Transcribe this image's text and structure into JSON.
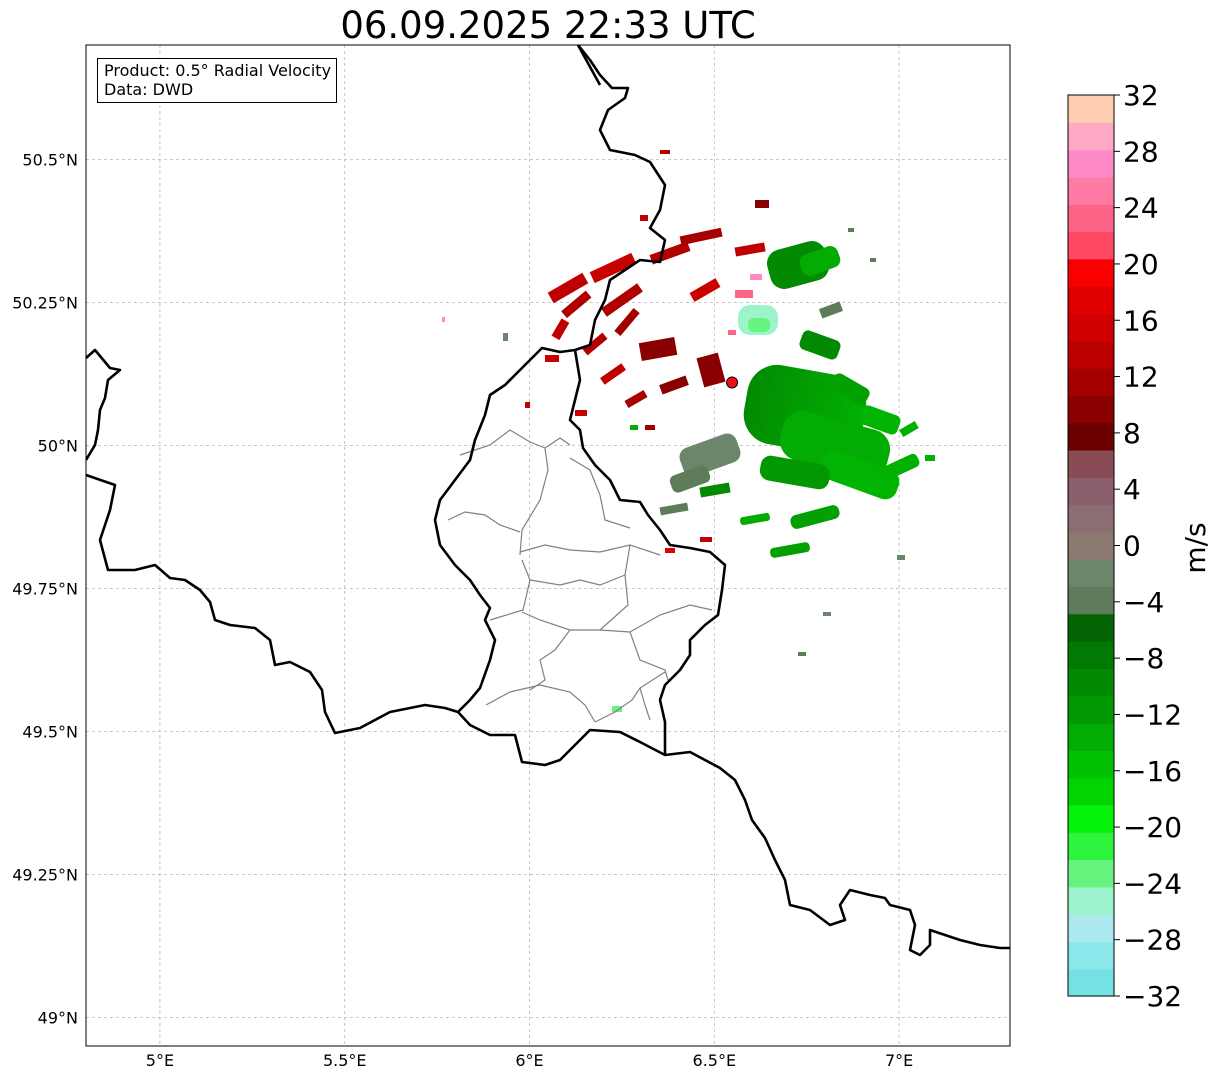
{
  "title": "06.09.2025 22:33 UTC",
  "info": {
    "product_line": "Product: 0.5° Radial Velocity",
    "data_line": "Data: DWD"
  },
  "map": {
    "lon_range": [
      4.8,
      7.3
    ],
    "lat_range": [
      48.95,
      50.7
    ],
    "lon_ticks": [
      {
        "value": 5.0,
        "label": "5°E"
      },
      {
        "value": 5.5,
        "label": "5.5°E"
      },
      {
        "value": 6.0,
        "label": "6°E"
      },
      {
        "value": 6.5,
        "label": "6.5°E"
      },
      {
        "value": 7.0,
        "label": "7°E"
      }
    ],
    "lat_ticks": [
      {
        "value": 49.0,
        "label": "49°N"
      },
      {
        "value": 49.25,
        "label": "49.25°N"
      },
      {
        "value": 49.5,
        "label": "49.5°N"
      },
      {
        "value": 49.75,
        "label": "49.75°N"
      },
      {
        "value": 50.0,
        "label": "50°N"
      },
      {
        "value": 50.25,
        "label": "50.25°N"
      },
      {
        "value": 50.5,
        "label": "50.5°N"
      }
    ],
    "gridlines": true,
    "radar_site": {
      "lon": 6.548,
      "lat": 50.11,
      "color": "#e8101a"
    }
  },
  "colorbar": {
    "unit": "m/s",
    "min": -32,
    "max": 32,
    "tick_labels": [
      {
        "value": 32,
        "label": "32"
      },
      {
        "value": 28,
        "label": "28"
      },
      {
        "value": 24,
        "label": "24"
      },
      {
        "value": 20,
        "label": "20"
      },
      {
        "value": 16,
        "label": "16"
      },
      {
        "value": 12,
        "label": "12"
      },
      {
        "value": 8,
        "label": "8"
      },
      {
        "value": 4,
        "label": "4"
      },
      {
        "value": 0,
        "label": "0"
      },
      {
        "value": -4,
        "label": "−4"
      },
      {
        "value": -8,
        "label": "−8"
      },
      {
        "value": -12,
        "label": "−12"
      },
      {
        "value": -16,
        "label": "−16"
      },
      {
        "value": -20,
        "label": "−20"
      },
      {
        "value": -24,
        "label": "−24"
      },
      {
        "value": -28,
        "label": "−28"
      },
      {
        "value": -32,
        "label": "−32"
      }
    ],
    "colors": [
      "#74e2e4",
      "#8ae8ea",
      "#ace9ee",
      "#9cf3cc",
      "#66f47e",
      "#2ef43e",
      "#06f30a",
      "#02d402",
      "#02c002",
      "#02ac02",
      "#029802",
      "#028a02",
      "#027a02",
      "#026402",
      "#5e7c5a",
      "#6c866c",
      "#8c7a72",
      "#8a6e74",
      "#8a5e6a",
      "#8a4c54",
      "#6c0000",
      "#8a0000",
      "#a40000",
      "#bc0000",
      "#d00000",
      "#e00000",
      "#f80000",
      "#fe4864",
      "#fe6488",
      "#fe7ca4",
      "#fe8ac8",
      "#feaac4",
      "#fecfb2"
    ]
  }
}
